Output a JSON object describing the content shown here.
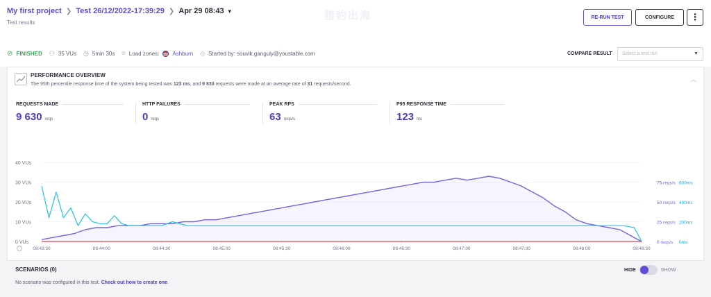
{
  "header": {
    "project": "My first project",
    "test": "Test 26/12/2022-17:39:29",
    "run_date": "Apr 29 08:43",
    "subtitle": "Test results",
    "watermark": "猎豹出海",
    "rerun_label": "RE-RUN TEST",
    "configure_label": "CONFIGURE",
    "more_label": "⋮"
  },
  "status": {
    "state": "FINISHED",
    "vus": "35 VUs",
    "duration": "5min 30s",
    "load_zones_label": "Load zones:",
    "zone": "Ashburn",
    "started_by": "Started by: souvik.ganguly@youstable.com"
  },
  "compare": {
    "label": "COMPARE RESULT",
    "placeholder": "Select a test run"
  },
  "overview": {
    "title": "PERFORMANCE OVERVIEW",
    "desc_1": "The 95th percentile response time of the system being tested was ",
    "desc_p95": "123 ms",
    "desc_2": ", and ",
    "desc_reqs": "9 630",
    "desc_3": " requests were made at an average rate of ",
    "desc_rate": "31",
    "desc_4": " requests/second.",
    "stats": [
      {
        "label": "REQUESTS MADE",
        "value": "9 630",
        "unit": "reqs"
      },
      {
        "label": "HTTP FAILURES",
        "value": "0",
        "unit": "reqs"
      },
      {
        "label": "PEAK RPS",
        "value": "63",
        "unit": "reqs/s"
      },
      {
        "label": "P95 RESPONSE TIME",
        "value": "123",
        "unit": "ms"
      }
    ]
  },
  "chart_data": {
    "type": "line",
    "left_axis": {
      "ticks": [
        "40 VUs",
        "30 VUs",
        "20 VUs",
        "10 VUs",
        "0 VUs"
      ],
      "values": [
        40,
        30,
        20,
        10,
        0
      ]
    },
    "right_axis_rps": {
      "ticks": [
        "75 reqs/s",
        "50 reqs/s",
        "25 reqs/s",
        "0 reqs/s"
      ],
      "values": [
        75,
        50,
        25,
        0
      ]
    },
    "right_axis_ms": {
      "ticks": [
        "600ms",
        "400ms",
        "200ms",
        "0ms"
      ],
      "values": [
        600,
        400,
        200,
        0
      ]
    },
    "x_ticks": [
      "08:43:30",
      "08:44:00",
      "08:44:30",
      "08:45:00",
      "08:45:30",
      "08:46:00",
      "08:46:30",
      "08:47:00",
      "08:47:30",
      "08:48:00",
      "08:48:30"
    ],
    "x_range_seconds": [
      0,
      330
    ],
    "series": [
      {
        "color": "#7b61e0",
        "fill": true,
        "t": [
          0,
          6,
          12,
          18,
          24,
          30,
          36,
          42,
          48,
          54,
          60,
          66,
          72,
          78,
          84,
          90,
          96,
          102,
          108,
          114,
          120,
          126,
          132,
          138,
          144,
          150,
          156,
          162,
          168,
          174,
          180,
          186,
          192,
          198,
          204,
          210,
          216,
          222,
          228,
          234,
          240,
          246,
          252,
          258,
          264,
          270,
          276,
          282,
          288,
          294,
          300,
          306,
          312,
          318,
          324,
          330
        ],
        "v": [
          1,
          2,
          3,
          4,
          6,
          7,
          7,
          8,
          8,
          8,
          9,
          9,
          9,
          10,
          10,
          11,
          11,
          12,
          13,
          14,
          15,
          16,
          17,
          18,
          19,
          20,
          21,
          22,
          23,
          24,
          25,
          26,
          27,
          28,
          29,
          30,
          30,
          31,
          32,
          31,
          32,
          33,
          32,
          30,
          28,
          25,
          22,
          18,
          15,
          11,
          9,
          8,
          7,
          6,
          3,
          0
        ]
      },
      {
        "color": "#22c3e6",
        "fill": false,
        "t": [
          0,
          4,
          8,
          12,
          16,
          20,
          24,
          28,
          32,
          36,
          40,
          44,
          48,
          54,
          60,
          66,
          72,
          80,
          90,
          100,
          110,
          120,
          130,
          140,
          150,
          160,
          170,
          180,
          190,
          200,
          210,
          220,
          230,
          240,
          250,
          260,
          270,
          280,
          290,
          300,
          310,
          320,
          326,
          330
        ],
        "v": [
          28,
          12,
          25,
          12,
          17,
          8,
          14,
          10,
          9,
          9,
          13,
          9,
          8,
          8,
          8,
          8,
          10,
          8,
          8,
          8,
          8,
          8,
          8,
          8,
          8,
          8,
          8,
          8,
          8,
          8,
          8,
          8,
          8,
          8,
          8,
          8,
          8,
          8,
          8,
          8,
          8,
          8,
          7,
          0
        ]
      },
      {
        "color": "#e0434f",
        "fill": false,
        "t": [
          0,
          330
        ],
        "v": [
          0,
          0
        ]
      }
    ]
  },
  "scenarios": {
    "title": "SCENARIOS (0)",
    "note": "No scenario was configured in this test. ",
    "link": "Check out how to create one",
    "link_end": ".",
    "hide": "HIDE",
    "show": "SHOW"
  },
  "colors": {
    "accent": "#5b4bd6",
    "success": "#3aa655",
    "vus_line": "#7b61e0",
    "response_line": "#22c3e6",
    "failure_line": "#e0434f"
  }
}
